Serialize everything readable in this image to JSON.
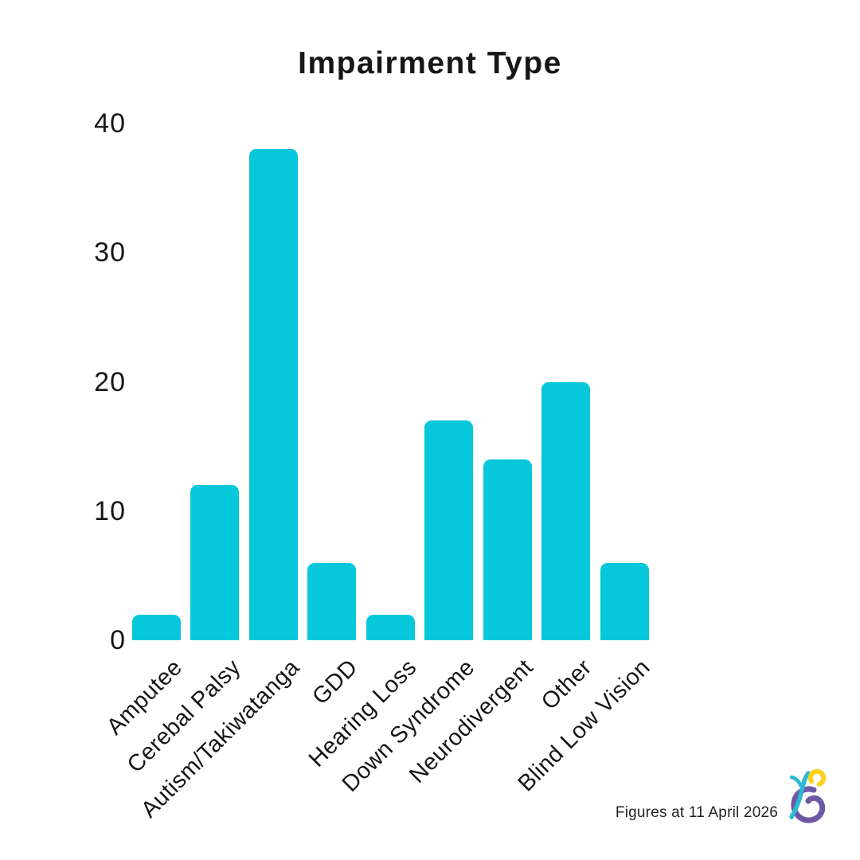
{
  "page": {
    "background": "#ffffff"
  },
  "chart_data": {
    "type": "bar",
    "title": "Impairment Type",
    "categories": [
      "Amputee",
      "Cerebal Palsy",
      "Autism/Takiwatanga",
      "GDD",
      "Hearing Loss",
      "Down Syndrome",
      "Neurodivergent",
      "Other",
      "Blind Low Vision"
    ],
    "values": [
      2,
      12,
      38,
      6,
      2,
      17,
      14,
      20,
      6
    ],
    "xlabel": "",
    "ylabel": "",
    "ylim": [
      0,
      40
    ],
    "yticks": [
      0,
      10,
      20,
      30,
      40
    ],
    "bar_color": "#06c8da",
    "grid": false,
    "legend": false,
    "x_label_rotation_deg": 45
  },
  "footer": {
    "note": "Figures at 11 April 2026"
  },
  "logo": {
    "name": "wheelchair-athlete-logo",
    "colors": {
      "yellow": "#ffd21c",
      "teal": "#2bbad3",
      "purple": "#6e57a5"
    }
  }
}
